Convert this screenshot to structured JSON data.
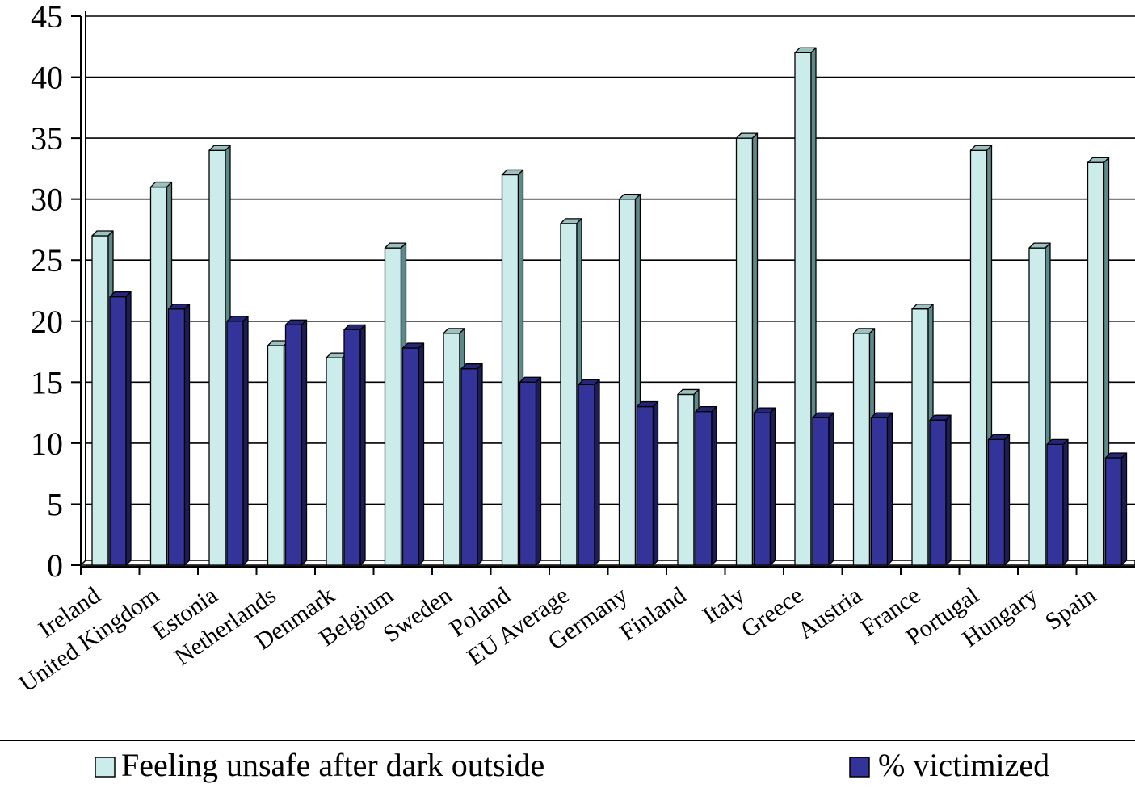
{
  "chart_data": {
    "type": "bar",
    "categories": [
      "Ireland",
      "United Kingdom",
      "Estonia",
      "Netherlands",
      "Denmark",
      "Belgium",
      "Sweden",
      "Poland",
      "EU Average",
      "Germany",
      "Finland",
      "Italy",
      "Greece",
      "Austria",
      "France",
      "Portugal",
      "Hungary",
      "Spain"
    ],
    "series": [
      {
        "name": "Feeling unsafe after dark outside",
        "color": "#CCECEC",
        "values": [
          27,
          31,
          34,
          18,
          17,
          26,
          19,
          32,
          28,
          30,
          14,
          35,
          42,
          19,
          21,
          34,
          26,
          33
        ]
      },
      {
        "name": "% victimized",
        "color": "#333399",
        "values": [
          22,
          21,
          20,
          19.7,
          19.3,
          17.8,
          16.1,
          15,
          14.8,
          13,
          12.6,
          12.5,
          12.1,
          12.1,
          11.9,
          10.3,
          9.9,
          8.8
        ]
      }
    ],
    "ylim": [
      0,
      45
    ],
    "yticks": [
      0,
      5,
      10,
      15,
      20,
      25,
      30,
      35,
      40,
      45
    ],
    "grid": true,
    "legend_position": "bottom",
    "style": "3d-clustered-columns"
  }
}
